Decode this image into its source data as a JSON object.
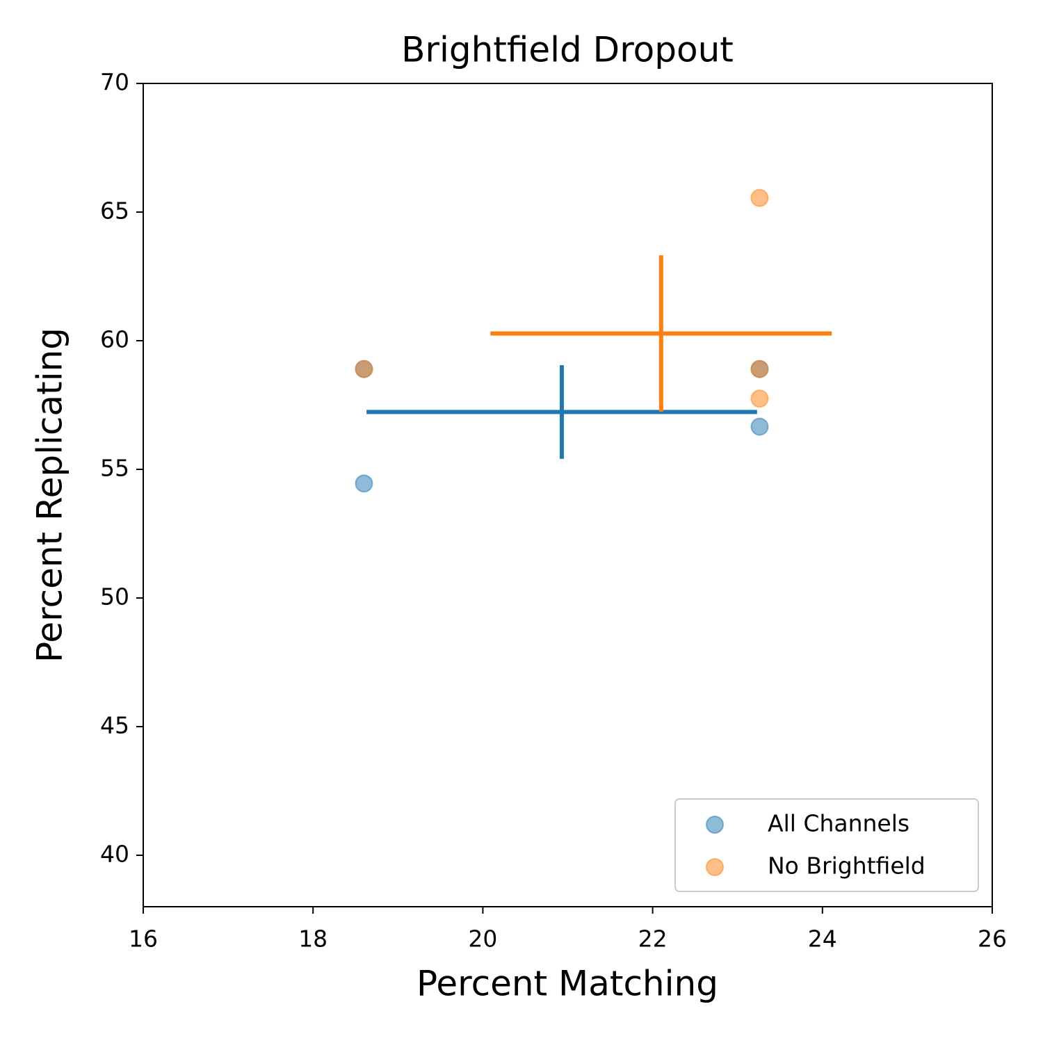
{
  "chart_data": {
    "type": "scatter",
    "title": "Brightfield Dropout",
    "x_label": "Percent Matching",
    "y_label": "Percent Replicating",
    "xlim": [
      16,
      26
    ],
    "xticks": [
      16,
      18,
      20,
      22,
      24,
      26
    ],
    "ylim": [
      38,
      70
    ],
    "yticks": [
      40,
      45,
      50,
      55,
      60,
      65,
      70
    ],
    "legend": "lower right",
    "series": [
      {
        "name": "All Channels",
        "color": "#1f77b4",
        "x": [
          18.6,
          18.6,
          23.26,
          23.26
        ],
        "values": [
          54.45,
          58.9,
          58.9,
          56.66
        ],
        "mean": {
          "x": 20.93,
          "y": 57.23,
          "xerr": 2.3,
          "yerr": 1.82
        }
      },
      {
        "name": "No Brightfield",
        "color": "#ff7f0e",
        "x": [
          18.6,
          23.26,
          23.26,
          23.26
        ],
        "values": [
          58.9,
          58.9,
          57.75,
          65.55
        ],
        "mean": {
          "x": 22.1,
          "y": 60.28,
          "xerr": 2.01,
          "yerr": 3.04
        }
      }
    ]
  }
}
